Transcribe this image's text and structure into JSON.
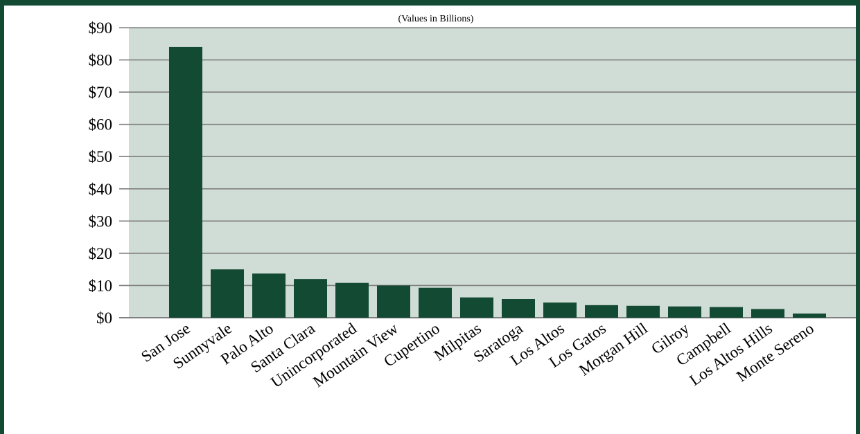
{
  "chart_data": {
    "type": "bar",
    "subtitle": "(Values in Billions)",
    "categories": [
      "San Jose",
      "Sunnyvale",
      "Palo Alto",
      "Santa Clara",
      "Unincorporated",
      "Mountain View",
      "Cupertino",
      "Milpitas",
      "Saratoga",
      "Los Altos",
      "Los Gatos",
      "Morgan Hill",
      "Gilroy",
      "Campbell",
      "Los Altos Hills",
      "Monte Sereno"
    ],
    "values": [
      84,
      15,
      13.7,
      12,
      10.8,
      10,
      9.3,
      6.3,
      5.8,
      4.7,
      3.9,
      3.7,
      3.5,
      3.3,
      2.7,
      1.3
    ],
    "y_ticks": [
      "$0",
      "$10",
      "$20",
      "$30",
      "$40",
      "$50",
      "$60",
      "$70",
      "$80",
      "$90"
    ],
    "ylim": [
      0,
      90
    ],
    "grid": true,
    "colors": {
      "bar": "#134a34",
      "plot_background": "#d0dcd6",
      "gridline": "#808080",
      "border": "#134a34"
    }
  }
}
